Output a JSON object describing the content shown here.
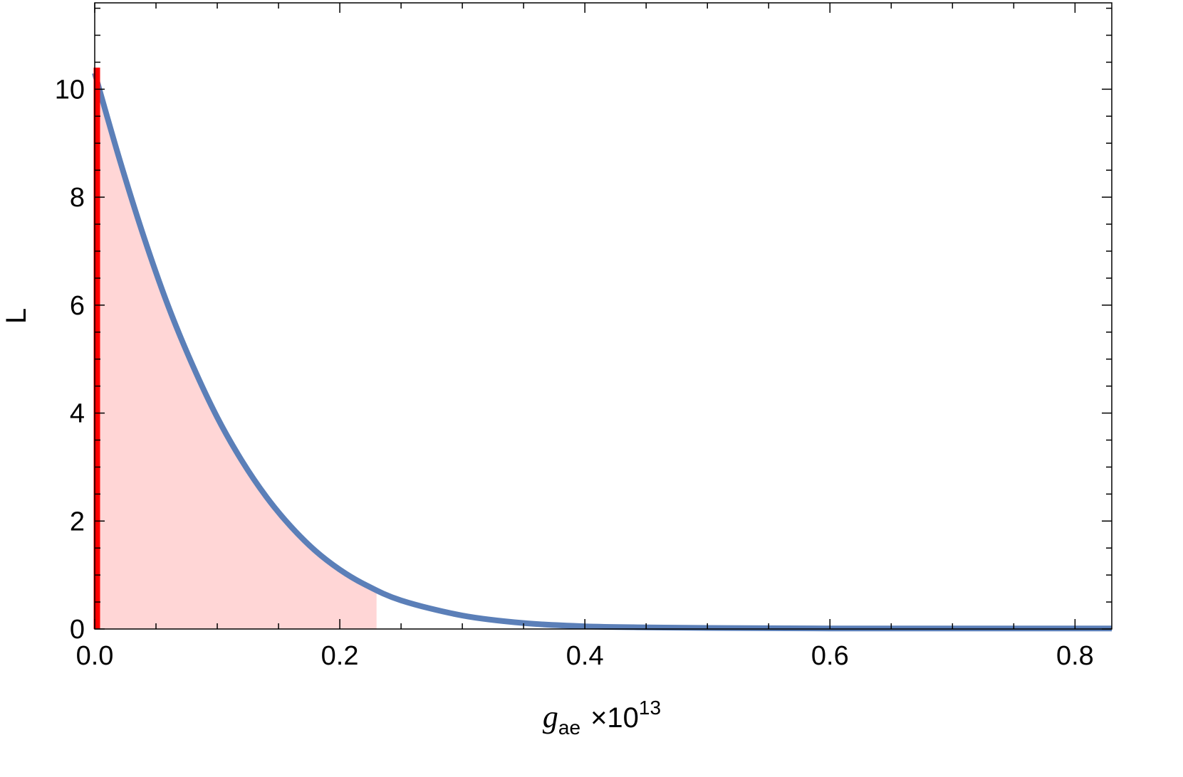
{
  "chart_data": {
    "type": "area",
    "xlabel": {
      "base": "g",
      "subscript": "ae",
      "multiplier_prefix": "×10",
      "multiplier_exponent": "13"
    },
    "ylabel": "L",
    "xlim": [
      0,
      0.83
    ],
    "ylim": [
      0,
      11.6
    ],
    "x_ticks": [
      "0.0",
      "0.2",
      "0.4",
      "0.6",
      "0.8"
    ],
    "x_tick_values": [
      0,
      0.2,
      0.4,
      0.6,
      0.8
    ],
    "y_ticks": [
      "0",
      "2",
      "4",
      "6",
      "8",
      "10"
    ],
    "y_tick_values": [
      0,
      2,
      4,
      6,
      8,
      10
    ],
    "x_minor_step": 0.05,
    "y_minor_step": 0.5,
    "grid": false,
    "series": [
      {
        "color": "#5b7fb8",
        "x": [
          0.0,
          0.02,
          0.04,
          0.06,
          0.08,
          0.1,
          0.12,
          0.14,
          0.16,
          0.18,
          0.2,
          0.22,
          0.25,
          0.3,
          0.35,
          0.4,
          0.45,
          0.5,
          0.6,
          0.7,
          0.83
        ],
        "y": [
          10.3,
          8.72,
          7.27,
          5.98,
          4.88,
          3.92,
          3.12,
          2.45,
          1.9,
          1.45,
          1.1,
          0.83,
          0.53,
          0.25,
          0.11,
          0.05,
          0.03,
          0.02,
          0.01,
          0.01,
          0.01
        ]
      }
    ],
    "shaded_region": {
      "x_from": 0.0,
      "x_to": 0.23,
      "color": "#ffd6d6"
    },
    "vertical_marker": {
      "x": 0.0,
      "y_to": 10.4,
      "color": "#ff0000"
    }
  }
}
